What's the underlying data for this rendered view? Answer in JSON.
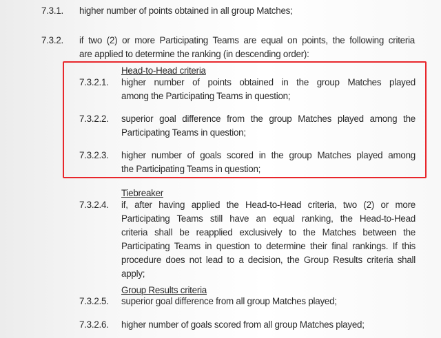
{
  "items": [
    {
      "number": "7.3.1.",
      "lines": [
        "higher number of points obtained in all group Matches;"
      ]
    },
    {
      "number": "7.3.2.",
      "lines": [
        "if two (2) or more Participating Teams are equal on points, the following criteria",
        "are applied to determine the ranking (in descending order):"
      ]
    }
  ],
  "head_to_head": {
    "heading": "Head-to-Head criteria",
    "items": [
      {
        "number": "7.3.2.1.",
        "lines": [
          "higher number of points obtained in the group Matches played",
          "among the Participating Teams in question;"
        ]
      },
      {
        "number": "7.3.2.2.",
        "lines": [
          "superior goal difference from the group Matches played among the",
          "Participating Teams in question;"
        ]
      },
      {
        "number": "7.3.2.3.",
        "lines": [
          "higher number of goals scored in the group Matches played among",
          "the Participating Teams in question;"
        ]
      }
    ],
    "highlight_color": "#e8262b"
  },
  "tiebreaker": {
    "heading": "Tiebreaker",
    "items": [
      {
        "number": "7.3.2.4.",
        "lines": [
          "if, after having applied the Head-to-Head criteria, two (2) or more",
          "Participating Teams still have an equal ranking, the Head-to-Head",
          "criteria shall be reapplied exclusively to the Matches between the",
          "Participating Teams in question to determine their final rankings. If this",
          "procedure does not lead to a decision, the Group Results criteria shall",
          "apply;"
        ]
      }
    ]
  },
  "group_results": {
    "heading": "Group Results criteria",
    "items": [
      {
        "number": "7.3.2.5.",
        "lines": [
          "superior goal difference from all group Matches played;"
        ]
      },
      {
        "number": "7.3.2.6.",
        "lines": [
          "higher number of goals scored from all group Matches played;"
        ]
      }
    ]
  }
}
